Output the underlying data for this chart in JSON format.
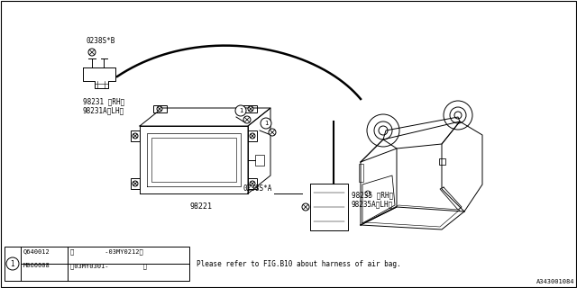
{
  "bg_color": "#ffffff",
  "title": "A343001084",
  "note_text": "Please refer to FIG.B10 about harness of air bag.",
  "lw": 0.7,
  "parts": {
    "0238S_B": "0238S*B",
    "98231": "98231 〈RH〉\n98231A〈LH〉",
    "98221": "98221",
    "0238S_A": "0238S*A",
    "98235": "98235 〈RH〉\n98235A〈LH〉"
  },
  "legend": {
    "row1_col1": "Q640012",
    "row1_col2": "〈        -03MY0212〉",
    "row2_col1": "M060008",
    "row2_col2": "〰03MY0301-         〉"
  }
}
